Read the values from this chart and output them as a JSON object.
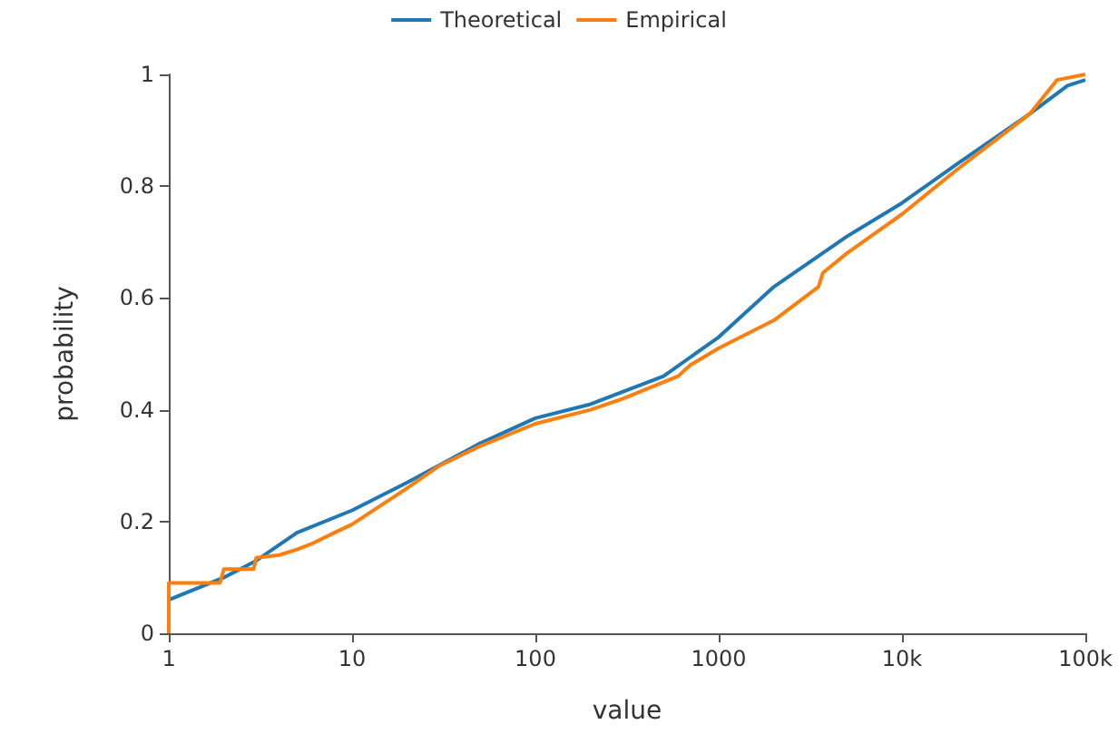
{
  "chart_data": {
    "type": "line",
    "xlabel": "value",
    "ylabel": "probability",
    "log": "x",
    "legend": "top",
    "grid": false,
    "marker": "none",
    "line_style": "solid",
    "xlim": [
      1,
      100000
    ],
    "xticks": [
      1,
      10,
      100,
      1000,
      {
        "value": 10000,
        "label": "10k"
      },
      {
        "value": 100000,
        "label": "100k"
      }
    ],
    "ylim": [
      0,
      1
    ],
    "yticks": [
      0,
      0.2,
      0.4,
      0.6,
      0.8,
      1
    ],
    "series": [
      {
        "name": "Theoretical",
        "color": "#1f77b4",
        "x": [
          1,
          2,
          3,
          5,
          10,
          20,
          50,
          100,
          200,
          500,
          1000,
          2000,
          5000,
          10000,
          20000,
          50000,
          80000,
          100000
        ],
        "values": [
          0.06,
          0.1,
          0.13,
          0.18,
          0.22,
          0.27,
          0.34,
          0.385,
          0.41,
          0.46,
          0.53,
          0.62,
          0.71,
          0.77,
          0.84,
          0.93,
          0.98,
          0.99
        ]
      },
      {
        "name": "Empirical",
        "color": "#ff7f0e",
        "x": [
          1,
          1,
          1.9,
          2,
          2.9,
          3,
          4,
          5,
          6,
          8,
          10,
          20,
          30,
          50,
          100,
          200,
          300,
          600,
          700,
          1000,
          2000,
          3500,
          3700,
          5000,
          10000,
          20000,
          50000,
          70000,
          100000
        ],
        "values": [
          0,
          0.09,
          0.09,
          0.115,
          0.115,
          0.135,
          0.14,
          0.15,
          0.16,
          0.18,
          0.195,
          0.26,
          0.3,
          0.335,
          0.375,
          0.4,
          0.42,
          0.46,
          0.48,
          0.51,
          0.56,
          0.62,
          0.645,
          0.68,
          0.75,
          0.83,
          0.93,
          0.99,
          1
        ]
      }
    ]
  }
}
